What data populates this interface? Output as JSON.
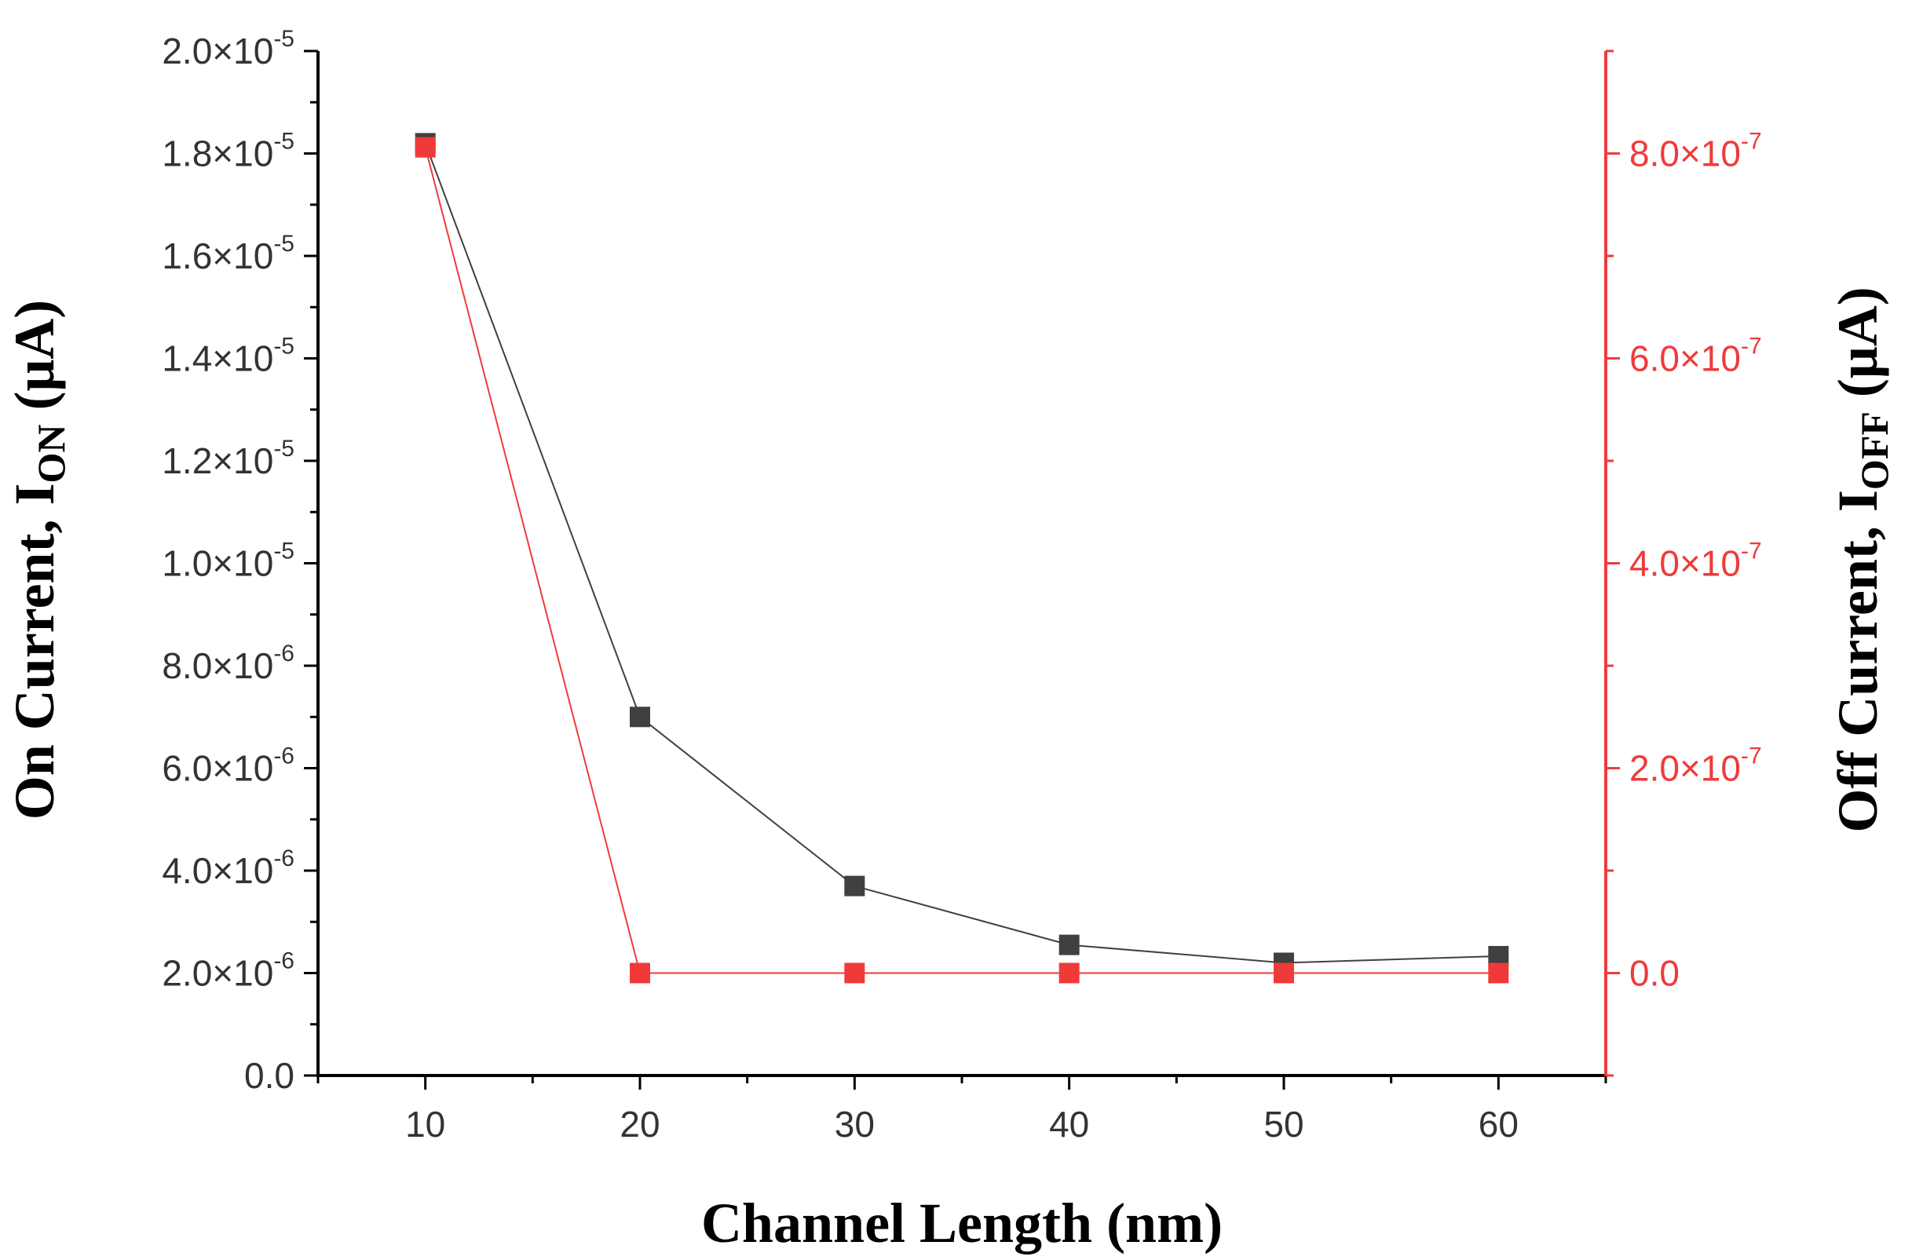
{
  "chart_data": {
    "type": "line",
    "xlabel": "Channel Length (nm)",
    "ylabel": {
      "text": "On Current, I",
      "sub": "ON",
      "unit": " (μA)"
    },
    "y2label": {
      "text": "Off Current, I",
      "sub": "OFF",
      "unit": " (μA)"
    },
    "x": [
      10,
      20,
      30,
      40,
      50,
      60
    ],
    "xlim": [
      5,
      65
    ],
    "x_ticks": [
      10,
      20,
      30,
      40,
      50,
      60
    ],
    "ylim": [
      0,
      2e-05
    ],
    "y_ticks": [
      {
        "value": 0,
        "mant": "0.0",
        "exp": ""
      },
      {
        "value": 2e-06,
        "mant": "2.0×10",
        "exp": "-6"
      },
      {
        "value": 4e-06,
        "mant": "4.0×10",
        "exp": "-6"
      },
      {
        "value": 6e-06,
        "mant": "6.0×10",
        "exp": "-6"
      },
      {
        "value": 8e-06,
        "mant": "8.0×10",
        "exp": "-6"
      },
      {
        "value": 1e-05,
        "mant": "1.0×10",
        "exp": "-5"
      },
      {
        "value": 1.2e-05,
        "mant": "1.2×10",
        "exp": "-5"
      },
      {
        "value": 1.4e-05,
        "mant": "1.4×10",
        "exp": "-5"
      },
      {
        "value": 1.6e-05,
        "mant": "1.6×10",
        "exp": "-5"
      },
      {
        "value": 1.8e-05,
        "mant": "1.8×10",
        "exp": "-5"
      },
      {
        "value": 2e-05,
        "mant": "2.0×10",
        "exp": "-5"
      }
    ],
    "y2lim": [
      -1e-07,
      9e-07
    ],
    "y2_ticks": [
      {
        "value": 0,
        "mant": "0.0",
        "exp": ""
      },
      {
        "value": 2e-07,
        "mant": "2.0×10",
        "exp": "-7"
      },
      {
        "value": 4e-07,
        "mant": "4.0×10",
        "exp": "-7"
      },
      {
        "value": 6e-07,
        "mant": "6.0×10",
        "exp": "-7"
      },
      {
        "value": 8e-07,
        "mant": "8.0×10",
        "exp": "-7"
      }
    ],
    "series": [
      {
        "axis": "left",
        "color": "#404040",
        "marker": "square",
        "values": [
          1.82e-05,
          7e-06,
          3.7e-06,
          2.55e-06,
          2.2e-06,
          2.33e-06
        ]
      },
      {
        "axis": "right",
        "color": "#f03a3a",
        "marker": "square",
        "values": [
          8.06e-07,
          0.0,
          0.0,
          0.0,
          0.0,
          0.0
        ]
      }
    ],
    "grid": false,
    "left_axis_color": "#000000",
    "right_axis_color": "#f03a3a"
  }
}
